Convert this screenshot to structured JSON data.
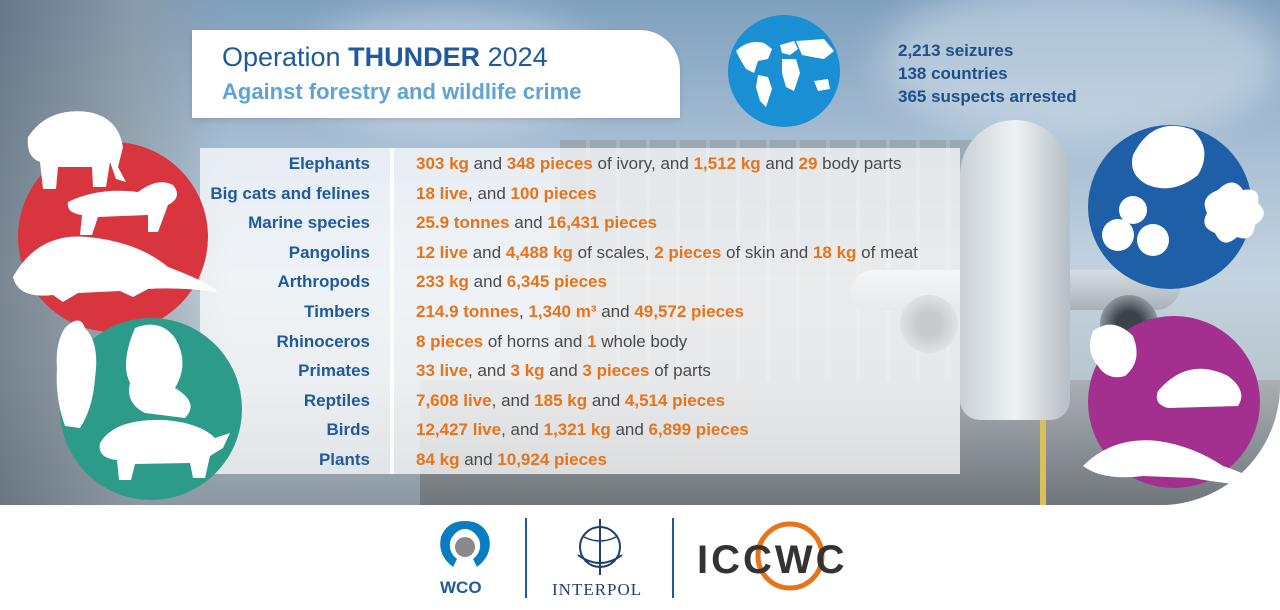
{
  "title": {
    "prefix": "Operation ",
    "bold": "THUNDER",
    "year": " 2024",
    "subtitle": "Against forestry and wildlife crime"
  },
  "stats": [
    "2,213 seizures",
    "138 countries",
    "365 suspects arrested"
  ],
  "rows": [
    {
      "label": "Elephants",
      "parts": [
        [
          "303 kg",
          true
        ],
        [
          " and ",
          false
        ],
        [
          "348 pieces",
          true
        ],
        [
          " of ivory, and ",
          false
        ],
        [
          "1,512 kg",
          true
        ],
        [
          " and ",
          false
        ],
        [
          "29",
          true
        ],
        [
          " body parts",
          false
        ]
      ]
    },
    {
      "label": "Big cats and felines",
      "parts": [
        [
          "18 live",
          true
        ],
        [
          ", and ",
          false
        ],
        [
          "100 pieces",
          true
        ]
      ]
    },
    {
      "label": "Marine species",
      "parts": [
        [
          "25.9 tonnes",
          true
        ],
        [
          " and ",
          false
        ],
        [
          "16,431 pieces",
          true
        ]
      ]
    },
    {
      "label": "Pangolins",
      "parts": [
        [
          "12 live",
          true
        ],
        [
          " and ",
          false
        ],
        [
          "4,488 kg",
          true
        ],
        [
          " of scales, ",
          false
        ],
        [
          "2 pieces",
          true
        ],
        [
          " of skin and ",
          false
        ],
        [
          "18 kg",
          true
        ],
        [
          " of meat",
          false
        ]
      ]
    },
    {
      "label": "Arthropods",
      "parts": [
        [
          "233 kg",
          true
        ],
        [
          " and ",
          false
        ],
        [
          "6,345 pieces",
          true
        ]
      ]
    },
    {
      "label": "Timbers",
      "parts": [
        [
          "214.9 tonnes",
          true
        ],
        [
          ", ",
          false
        ],
        [
          "1,340 m³",
          true
        ],
        [
          " and ",
          false
        ],
        [
          "49,572 pieces",
          true
        ]
      ]
    },
    {
      "label": "Rhinoceros",
      "parts": [
        [
          "8 pieces",
          true
        ],
        [
          " of horns and ",
          false
        ],
        [
          "1",
          true
        ],
        [
          " whole body",
          false
        ]
      ]
    },
    {
      "label": "Primates",
      "parts": [
        [
          "33 live",
          true
        ],
        [
          ", and ",
          false
        ],
        [
          "3 kg",
          true
        ],
        [
          " and ",
          false
        ],
        [
          "3 pieces",
          true
        ],
        [
          " of parts",
          false
        ]
      ]
    },
    {
      "label": "Reptiles",
      "parts": [
        [
          "7,608 live",
          true
        ],
        [
          ", and ",
          false
        ],
        [
          "185 kg",
          true
        ],
        [
          " and ",
          false
        ],
        [
          "4,514 pieces",
          true
        ]
      ]
    },
    {
      "label": "Birds",
      "parts": [
        [
          "12,427 live",
          true
        ],
        [
          ", and ",
          false
        ],
        [
          "1,321 kg",
          true
        ],
        [
          " and ",
          false
        ],
        [
          "6,899 pieces",
          true
        ]
      ]
    },
    {
      "label": "Plants",
      "parts": [
        [
          "84 kg",
          true
        ],
        [
          " and ",
          false
        ],
        [
          "10,924 pieces",
          true
        ]
      ]
    }
  ],
  "logos": {
    "wco": "WCO",
    "interpol": "INTERPOL",
    "iccwc": "ICCWC"
  },
  "colors": {
    "title_blue": "#1f5a9c",
    "subtitle_blue": "#5ea3d6",
    "highlight_orange": "#e8731a",
    "circle_red": "#d9353e",
    "circle_teal": "#2d9b8a",
    "circle_blue": "#1f5fa8",
    "circle_purple": "#a32f8f"
  }
}
